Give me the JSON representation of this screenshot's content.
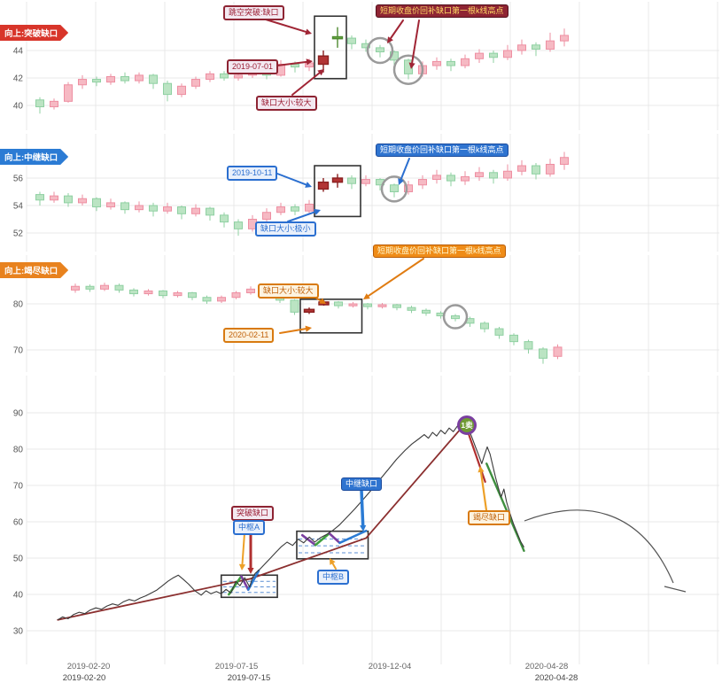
{
  "chart_data": [
    {
      "type": "candlestick",
      "panel": "breakout-gap",
      "direction_label": "向上:突破缺口",
      "accent": "#a02535",
      "y_ticks": [
        "44",
        "42",
        "40"
      ],
      "annotations": {
        "breakout": "跳空突破:缺口",
        "date": "2019-07-01",
        "gap_size": "缺口大小:较大",
        "cover": "短期收盘价回补缺口第一根k线高点"
      },
      "candles": [
        [
          40.4,
          39.9,
          39.4,
          40.6
        ],
        [
          39.9,
          40.3,
          39.7,
          40.5
        ],
        [
          40.3,
          41.5,
          40.2,
          41.7
        ],
        [
          41.5,
          41.9,
          41.2,
          42.2
        ],
        [
          41.9,
          41.7,
          41.4,
          42.1
        ],
        [
          41.7,
          42.1,
          41.5,
          42.3
        ],
        [
          42.1,
          41.8,
          41.6,
          42.4
        ],
        [
          41.8,
          42.2,
          41.6,
          42.4
        ],
        [
          42.2,
          41.6,
          41.2,
          42.3
        ],
        [
          41.6,
          40.8,
          40.3,
          41.8
        ],
        [
          40.8,
          41.4,
          40.6,
          41.6
        ],
        [
          41.4,
          41.9,
          41.2,
          42.1
        ],
        [
          41.9,
          42.3,
          41.7,
          42.5
        ],
        [
          42.3,
          42.0,
          41.8,
          42.5
        ],
        [
          42.0,
          42.2,
          41.8,
          42.4
        ],
        [
          42.2,
          42.5,
          42.0,
          42.7
        ],
        [
          42.5,
          42.2,
          41.9,
          42.6
        ],
        [
          42.2,
          43.0,
          42.1,
          43.3
        ],
        [
          43.0,
          42.8,
          42.4,
          43.2
        ],
        [
          42.8,
          43.1,
          42.5,
          43.4
        ],
        [
          43.0,
          43.6,
          42.4,
          44.0,
          "r"
        ],
        [
          45.0,
          44.9,
          44.2,
          45.7,
          "g"
        ],
        [
          44.9,
          44.5,
          44.1,
          45.1
        ],
        [
          44.5,
          44.2,
          43.9,
          44.8
        ],
        [
          44.2,
          43.9,
          43.5,
          44.4
        ],
        [
          43.9,
          43.3,
          42.9,
          44.0
        ],
        [
          43.3,
          42.3,
          41.9,
          43.4
        ],
        [
          42.3,
          42.9,
          42.1,
          43.2
        ],
        [
          42.9,
          43.2,
          42.6,
          43.5
        ],
        [
          43.2,
          42.9,
          42.5,
          43.4
        ],
        [
          42.9,
          43.4,
          42.7,
          43.7
        ],
        [
          43.4,
          43.8,
          43.1,
          44.1
        ],
        [
          43.8,
          43.5,
          43.1,
          44.0
        ],
        [
          43.5,
          44.0,
          43.3,
          44.4
        ],
        [
          44.0,
          44.4,
          43.7,
          44.8
        ],
        [
          44.4,
          44.1,
          43.6,
          44.6
        ],
        [
          44.1,
          44.7,
          43.9,
          45.3
        ],
        [
          44.7,
          45.1,
          44.3,
          45.6
        ]
      ],
      "highlight_box": {
        "from": 21,
        "to": 22,
        "v_low": 41.95,
        "v_high": 46.5
      },
      "circles": [
        {
          "candle": 25,
          "v": 44.0,
          "r": 14
        },
        {
          "candle": 27,
          "v": 42.6,
          "r": 16
        }
      ]
    },
    {
      "type": "candlestick",
      "panel": "continuation-gap",
      "direction_label": "向上:中继缺口",
      "accent": "#2b6fd0",
      "y_ticks": [
        "56",
        "54",
        "52"
      ],
      "annotations": {
        "date": "2019-10-11",
        "gap_size": "缺口大小:极小",
        "cover": "短期收盘价回补缺口第一根k线高点"
      },
      "candles": [
        [
          54.8,
          54.4,
          54.0,
          55.0
        ],
        [
          54.4,
          54.7,
          54.2,
          55.0
        ],
        [
          54.7,
          54.2,
          53.9,
          54.9
        ],
        [
          54.2,
          54.5,
          54.0,
          54.8
        ],
        [
          54.5,
          53.9,
          53.6,
          54.6
        ],
        [
          53.9,
          54.2,
          53.7,
          54.5
        ],
        [
          54.2,
          53.7,
          53.4,
          54.3
        ],
        [
          53.7,
          54.0,
          53.5,
          54.3
        ],
        [
          54.0,
          53.6,
          53.2,
          54.2
        ],
        [
          53.6,
          53.9,
          53.4,
          54.2
        ],
        [
          53.9,
          53.4,
          53.0,
          54.0
        ],
        [
          53.4,
          53.8,
          53.2,
          54.1
        ],
        [
          53.8,
          53.3,
          52.9,
          53.9
        ],
        [
          53.3,
          52.8,
          52.4,
          53.5
        ],
        [
          52.8,
          52.3,
          51.8,
          53.0
        ],
        [
          52.3,
          53.0,
          52.1,
          53.3
        ],
        [
          53.0,
          53.5,
          52.8,
          53.8
        ],
        [
          53.5,
          53.9,
          53.3,
          54.2
        ],
        [
          53.9,
          53.6,
          53.3,
          54.1
        ],
        [
          53.6,
          54.1,
          53.4,
          54.4
        ],
        [
          55.2,
          55.7,
          55.0,
          56.0,
          "r"
        ],
        [
          55.7,
          56.0,
          55.3,
          56.3,
          "r"
        ],
        [
          56.0,
          55.6,
          55.2,
          56.2
        ],
        [
          55.6,
          55.9,
          55.4,
          56.2
        ],
        [
          55.9,
          55.5,
          55.1,
          56.0
        ],
        [
          55.5,
          55.0,
          54.6,
          55.6
        ],
        [
          55.0,
          55.5,
          54.8,
          55.8
        ],
        [
          55.5,
          55.9,
          55.2,
          56.2
        ],
        [
          55.9,
          56.2,
          55.6,
          56.6
        ],
        [
          56.2,
          55.8,
          55.4,
          56.4
        ],
        [
          55.8,
          56.1,
          55.5,
          56.5
        ],
        [
          56.1,
          56.4,
          55.8,
          56.8
        ],
        [
          56.4,
          56.0,
          55.6,
          56.6
        ],
        [
          56.0,
          56.5,
          55.8,
          57.0
        ],
        [
          56.5,
          56.9,
          56.2,
          57.3
        ],
        [
          56.9,
          56.3,
          55.9,
          57.1
        ],
        [
          56.3,
          57.0,
          56.1,
          57.4
        ],
        [
          57.0,
          57.5,
          56.6,
          57.9
        ]
      ],
      "highlight_box": {
        "from": 21,
        "to": 23,
        "v_low": 53.2,
        "v_high": 56.9
      },
      "circles": [
        {
          "candle": 26,
          "v": 55.2,
          "r": 14
        }
      ]
    },
    {
      "type": "candlestick",
      "panel": "exhaustion-gap",
      "direction_label": "向上:竭尽缺口",
      "accent": "#e07c12",
      "y_ticks": [
        "80",
        "70"
      ],
      "annotations": {
        "date": "2020-02-11",
        "gap_size": "缺口大小:较大",
        "cover": "短期收盘价回补缺口第一根k线高点"
      },
      "candles": [
        [
          83.0,
          83.8,
          82.4,
          84.4
        ],
        [
          83.8,
          83.2,
          82.6,
          84.2
        ],
        [
          83.2,
          84.0,
          82.8,
          84.6
        ],
        [
          84.0,
          83.0,
          82.4,
          84.4
        ],
        [
          83.0,
          82.2,
          81.6,
          83.4
        ],
        [
          82.2,
          82.8,
          81.8,
          83.2
        ],
        [
          82.8,
          81.8,
          81.2,
          83.0
        ],
        [
          81.8,
          82.4,
          81.4,
          82.8
        ],
        [
          82.4,
          81.4,
          80.8,
          82.6
        ],
        [
          81.4,
          80.6,
          80.0,
          81.8
        ],
        [
          80.6,
          81.4,
          80.2,
          81.8
        ],
        [
          81.4,
          82.4,
          81.0,
          82.8
        ],
        [
          82.4,
          83.2,
          82.0,
          83.8
        ],
        [
          83.2,
          82.2,
          81.6,
          83.4
        ],
        [
          82.2,
          80.8,
          80.2,
          82.4
        ],
        [
          80.8,
          78.2,
          77.6,
          81.0
        ],
        [
          78.2,
          78.8,
          77.8,
          79.2,
          "r"
        ],
        [
          79.8,
          80.4,
          79.6,
          80.8,
          "r"
        ],
        [
          80.4,
          79.6,
          79.0,
          80.6
        ],
        [
          79.6,
          80.0,
          79.2,
          80.4
        ],
        [
          80.0,
          79.4,
          78.8,
          80.2
        ],
        [
          79.4,
          79.8,
          79.0,
          80.2
        ],
        [
          79.8,
          79.2,
          78.6,
          80.0
        ],
        [
          79.2,
          78.6,
          78.0,
          79.6
        ],
        [
          78.6,
          78.0,
          77.4,
          79.0
        ],
        [
          78.0,
          77.4,
          76.8,
          78.4
        ],
        [
          77.4,
          76.8,
          76.2,
          77.8
        ],
        [
          76.8,
          75.8,
          75.0,
          77.2
        ],
        [
          75.8,
          74.6,
          73.8,
          76.2
        ],
        [
          74.6,
          73.2,
          72.4,
          75.0
        ],
        [
          73.2,
          71.8,
          71.0,
          73.6
        ],
        [
          71.8,
          70.2,
          69.2,
          72.2
        ],
        [
          70.2,
          68.2,
          67.0,
          70.6
        ],
        [
          68.6,
          70.6,
          68.0,
          71.2
        ]
      ],
      "highlight_box": {
        "from": 17,
        "to": 20,
        "v_low": 73.7,
        "v_high": 81.0
      },
      "circles": [
        {
          "candle": 27,
          "v": 77.2,
          "r": 13
        }
      ]
    },
    {
      "type": "line",
      "panel": "price-overview",
      "y_ticks": [
        "90",
        "80",
        "70",
        "60",
        "50",
        "40",
        "30"
      ],
      "x_labels": [
        "2019-02-20",
        "2019-07-15",
        "2019-12-04",
        "2020-04-28"
      ],
      "x_labels_bottom": [
        "2019-02-20",
        "2019-07-15",
        "2020-04-28"
      ],
      "labels": {
        "breakout_gap": "突破缺口",
        "pivot_a": "中枢A",
        "continuation_gap": "中继缺口",
        "pivot_b": "中枢B",
        "exhaustion_gap": "竭尽缺口",
        "sell_point": "1卖"
      },
      "line": [
        [
          0.045,
          33.0
        ],
        [
          0.052,
          33.8
        ],
        [
          0.06,
          33.3
        ],
        [
          0.068,
          34.5
        ],
        [
          0.076,
          35.1
        ],
        [
          0.084,
          34.7
        ],
        [
          0.092,
          35.7
        ],
        [
          0.1,
          36.3
        ],
        [
          0.108,
          35.9
        ],
        [
          0.116,
          36.8
        ],
        [
          0.124,
          37.4
        ],
        [
          0.132,
          37.0
        ],
        [
          0.14,
          38.0
        ],
        [
          0.148,
          38.6
        ],
        [
          0.156,
          38.2
        ],
        [
          0.164,
          39.0
        ],
        [
          0.172,
          39.6
        ],
        [
          0.18,
          40.4
        ],
        [
          0.188,
          41.2
        ],
        [
          0.196,
          42.4
        ],
        [
          0.204,
          43.6
        ],
        [
          0.212,
          44.6
        ],
        [
          0.219,
          45.3
        ],
        [
          0.226,
          44.2
        ],
        [
          0.234,
          42.8
        ],
        [
          0.243,
          41.0
        ],
        [
          0.252,
          39.8
        ],
        [
          0.259,
          41.0
        ],
        [
          0.266,
          40.2
        ],
        [
          0.274,
          40.8
        ],
        [
          0.281,
          40.2
        ],
        [
          0.288,
          41.4
        ],
        [
          0.295,
          40.4
        ],
        [
          0.302,
          43.6
        ],
        [
          0.308,
          42.4
        ],
        [
          0.315,
          44.6
        ],
        [
          0.322,
          42.0
        ],
        [
          0.326,
          44.6
        ],
        [
          0.33,
          45.8
        ],
        [
          0.336,
          46.8
        ],
        [
          0.344,
          48.4
        ],
        [
          0.352,
          50.0
        ],
        [
          0.36,
          51.6
        ],
        [
          0.368,
          53.2
        ],
        [
          0.376,
          54.4
        ],
        [
          0.384,
          53.5
        ],
        [
          0.392,
          55.2
        ],
        [
          0.4,
          54.2
        ],
        [
          0.408,
          55.8
        ],
        [
          0.416,
          54.4
        ],
        [
          0.424,
          55.6
        ],
        [
          0.432,
          56.4
        ],
        [
          0.442,
          57.6
        ],
        [
          0.452,
          59.2
        ],
        [
          0.462,
          61.2
        ],
        [
          0.474,
          63.6
        ],
        [
          0.486,
          66.2
        ],
        [
          0.498,
          68.8
        ],
        [
          0.51,
          71.6
        ],
        [
          0.522,
          74.4
        ],
        [
          0.534,
          77.2
        ],
        [
          0.546,
          79.6
        ],
        [
          0.556,
          81.4
        ],
        [
          0.566,
          82.8
        ],
        [
          0.574,
          84.0
        ],
        [
          0.58,
          83.0
        ],
        [
          0.586,
          84.6
        ],
        [
          0.592,
          83.6
        ],
        [
          0.598,
          85.2
        ],
        [
          0.604,
          84.2
        ],
        [
          0.61,
          85.8
        ],
        [
          0.616,
          84.8
        ],
        [
          0.622,
          86.4
        ],
        [
          0.628,
          85.4
        ],
        [
          0.633,
          87.2
        ],
        [
          0.638,
          85.6
        ],
        [
          0.643,
          83.2
        ],
        [
          0.648,
          80.6
        ],
        [
          0.653,
          78.2
        ],
        [
          0.657,
          76.0
        ],
        [
          0.661,
          78.4
        ],
        [
          0.665,
          80.6
        ],
        [
          0.669,
          78.6
        ],
        [
          0.673,
          75.4
        ],
        [
          0.677,
          72.2
        ],
        [
          0.681,
          69.4
        ],
        [
          0.685,
          66.8
        ],
        [
          0.689,
          69.0
        ],
        [
          0.693,
          65.4
        ],
        [
          0.698,
          62.2
        ],
        [
          0.703,
          59.4
        ],
        [
          0.708,
          57.0
        ],
        [
          0.713,
          54.6
        ],
        [
          0.718,
          53.0
        ]
      ],
      "segments": [
        {
          "x1": 0.045,
          "v1": 33.0,
          "x2": 0.323,
          "v2": 44.3,
          "color": "#8b2f2f",
          "w": 1.8
        },
        {
          "x1": 0.323,
          "v1": 44.3,
          "x2": 0.49,
          "v2": 55.5,
          "color": "#8b2f2f",
          "w": 1.8
        },
        {
          "x1": 0.49,
          "v1": 55.5,
          "x2": 0.633,
          "v2": 87.0,
          "color": "#8b2f2f",
          "w": 1.8
        },
        {
          "x1": 0.633,
          "v1": 87.0,
          "x2": 0.662,
          "v2": 71.0,
          "color": "#b03030",
          "w": 2.2
        },
        {
          "x1": 0.664,
          "v1": 76.0,
          "x2": 0.718,
          "v2": 52.0,
          "color": "#3f8f3f",
          "w": 2.4
        },
        {
          "x1": 0.292,
          "v1": 40.0,
          "x2": 0.31,
          "v2": 45.0,
          "color": "#3f9f3f",
          "w": 2.6
        },
        {
          "x1": 0.31,
          "v1": 45.0,
          "x2": 0.32,
          "v2": 41.3,
          "color": "#7a3fa0",
          "w": 2.6
        },
        {
          "x1": 0.32,
          "v1": 41.3,
          "x2": 0.335,
          "v2": 46.5,
          "color": "#2b7bd4",
          "w": 2.6
        },
        {
          "x1": 0.398,
          "v1": 56.3,
          "x2": 0.417,
          "v2": 53.6,
          "color": "#7a3fa0",
          "w": 2.6
        },
        {
          "x1": 0.417,
          "v1": 53.6,
          "x2": 0.437,
          "v2": 56.8,
          "color": "#3f9f3f",
          "w": 2.6
        },
        {
          "x1": 0.437,
          "v1": 56.8,
          "x2": 0.452,
          "v2": 54.2,
          "color": "#7a3fa0",
          "w": 2.6
        },
        {
          "x1": 0.452,
          "v1": 54.2,
          "x2": 0.49,
          "v2": 57.5,
          "color": "#2b7bd4",
          "w": 2.6
        }
      ],
      "pivot_boxes": [
        {
          "x1": 0.281,
          "x2": 0.362,
          "v1": 39.2,
          "v2": 45.3
        },
        {
          "x1": 0.39,
          "x2": 0.493,
          "v1": 49.8,
          "v2": 57.4
        }
      ]
    }
  ],
  "colors": {
    "up": "#f6b9c3",
    "up_border": "#ee8fa2",
    "down": "#bbe4c3",
    "down_border": "#8fd0a2",
    "strong_red": "#b23434",
    "strong_red_border": "#8a1f1f",
    "strong_green": "#6aab45",
    "strong_green_border": "#4e8a30",
    "grid": "#e9e9e9",
    "circle": "#9a9a9a",
    "box": "#333333",
    "pivot_dash": "#5b8fd4",
    "price_line": "#3a3a3a",
    "arc": "#555555",
    "axis_text": "#666666"
  }
}
